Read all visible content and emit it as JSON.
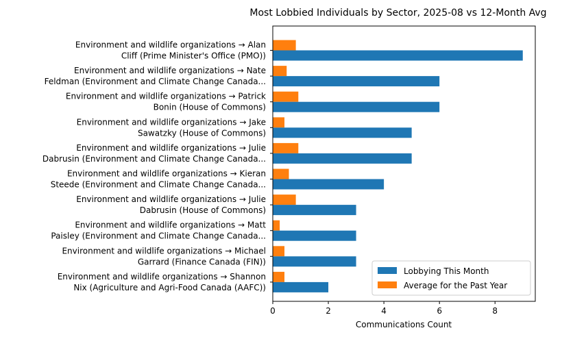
{
  "chart_data": {
    "type": "bar",
    "orientation": "horizontal",
    "title": "Most Lobbied Individuals by Sector, 2025-08 vs 12-Month Avg",
    "xlabel": "Communications Count",
    "ylabel": "",
    "xlim": [
      0,
      9.45
    ],
    "xticks": [
      0,
      2,
      4,
      6,
      8
    ],
    "grid": false,
    "legend_position": "lower-right",
    "categories": [
      [
        "Environment and wildlife organizations → Alan",
        "Cliff (Prime Minister's Office (PMO))"
      ],
      [
        "Environment and wildlife organizations → Nate",
        "Feldman (Environment and Climate Change Canada..."
      ],
      [
        "Environment and wildlife organizations → Patrick",
        "Bonin (House of Commons)"
      ],
      [
        "Environment and wildlife organizations → Jake",
        "Sawatzky (House of Commons)"
      ],
      [
        "Environment and wildlife organizations → Julie",
        "Dabrusin (Environment and Climate Change Canada..."
      ],
      [
        "Environment and wildlife organizations → Kieran",
        "Steede (Environment and Climate Change Canada..."
      ],
      [
        "Environment and wildlife organizations → Julie",
        "Dabrusin (House of Commons)"
      ],
      [
        "Environment and wildlife organizations → Matt",
        "Paisley (Environment and Climate Change Canada..."
      ],
      [
        "Environment and wildlife organizations → Michael",
        "Garrard (Finance Canada (FIN))"
      ],
      [
        "Environment and wildlife organizations → Shannon",
        "Nix (Agriculture and Agri-Food Canada (AAFC))"
      ]
    ],
    "series": [
      {
        "name": "Lobbying This Month",
        "color": "#1f77b4",
        "values": [
          9,
          6,
          6,
          5,
          5,
          4,
          3,
          3,
          3,
          2
        ]
      },
      {
        "name": "Average for the Past Year",
        "color": "#ff7f0e",
        "values": [
          0.83,
          0.5,
          0.92,
          0.42,
          0.92,
          0.58,
          0.83,
          0.25,
          0.42,
          0.42
        ]
      }
    ]
  }
}
